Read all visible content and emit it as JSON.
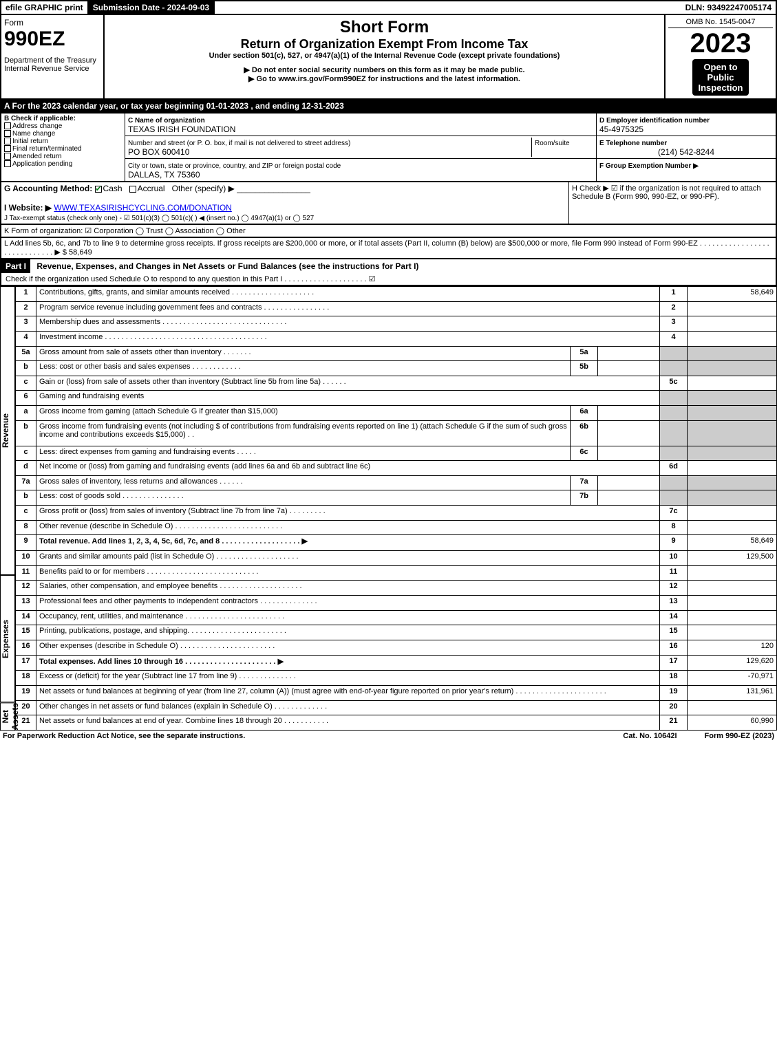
{
  "topbar": {
    "efile": "efile GRAPHIC print",
    "submission_label": "Submission Date - 2024-09-03",
    "dln": "DLN: 93492247005174"
  },
  "header": {
    "form_word": "Form",
    "form_no": "990EZ",
    "dept": "Department of the Treasury\nInternal Revenue Service",
    "short_form": "Short Form",
    "title": "Return of Organization Exempt From Income Tax",
    "under": "Under section 501(c), 527, or 4947(a)(1) of the Internal Revenue Code (except private foundations)",
    "warn": "▶ Do not enter social security numbers on this form as it may be made public.",
    "goto": "▶ Go to www.irs.gov/Form990EZ for instructions and the latest information.",
    "omb": "OMB No. 1545-0047",
    "year": "2023",
    "open": "Open to\nPublic\nInspection"
  },
  "rowA": "A  For the 2023 calendar year, or tax year beginning 01-01-2023 , and ending 12-31-2023",
  "checkB": {
    "title": "B  Check if applicable:",
    "items": [
      "Address change",
      "Name change",
      "Initial return",
      "Final return/terminated",
      "Amended return",
      "Application pending"
    ]
  },
  "nameBox": {
    "c_label": "C Name of organization",
    "name": "TEXAS IRISH FOUNDATION",
    "street_label": "Number and street (or P. O. box, if mail is not delivered to street address)",
    "room_label": "Room/suite",
    "street": "PO BOX 600410",
    "city_label": "City or town, state or province, country, and ZIP or foreign postal code",
    "city": "DALLAS, TX  75360"
  },
  "rightBox": {
    "d_label": "D Employer identification number",
    "ein": "45-4975325",
    "e_label": "E Telephone number",
    "phone": "(214) 542-8244",
    "f_label": "F Group Exemption Number  ▶"
  },
  "rowG": {
    "label": "G Accounting Method:",
    "cash": "Cash",
    "accrual": "Accrual",
    "other": "Other (specify) ▶"
  },
  "rowH": "H  Check ▶ ☑ if the organization is not required to attach Schedule B (Form 990, 990-EZ, or 990-PF).",
  "rowI": {
    "label": "I Website: ▶",
    "url": "WWW.TEXASIRISHCYCLING.COM/DONATION"
  },
  "rowJ": "J Tax-exempt status (check only one) - ☑ 501(c)(3)  ◯ 501(c)(  ) ◀ (insert no.)  ◯ 4947(a)(1) or  ◯ 527",
  "rowK": "K Form of organization:  ☑ Corporation  ◯ Trust  ◯ Association  ◯ Other",
  "rowL": {
    "text": "L Add lines 5b, 6c, and 7b to line 9 to determine gross receipts. If gross receipts are $200,000 or more, or if total assets (Part II, column (B) below) are $500,000 or more, file Form 990 instead of Form 990-EZ  .  .  .  .  .  .  .  .  .  .  .  .  .  .  .  .  .  .  .  .  .  .  .  .  .  .  .  .  .   ▶ $",
    "amount": "58,649"
  },
  "partI": {
    "bar": "Part I",
    "title": "Revenue, Expenses, and Changes in Net Assets or Fund Balances (see the instructions for Part I)",
    "sub": "Check if the organization used Schedule O to respond to any question in this Part I  .  .  .  .  .  .  .  .  .  .  .  .  .  .  .  .  .  .  .  .  ☑"
  },
  "sections": {
    "revenue": "Revenue",
    "expenses": "Expenses",
    "netassets": "Net Assets"
  },
  "lines": [
    {
      "n": "1",
      "d": "Contributions, gifts, grants, and similar amounts received  .  .  .  .  .  .  .  .  .  .  .  .  .  .  .  .  .  .  .  .",
      "r": "1",
      "a": "58,649"
    },
    {
      "n": "2",
      "d": "Program service revenue including government fees and contracts  .  .  .  .  .  .  .  .  .  .  .  .  .  .  .  .",
      "r": "2",
      "a": ""
    },
    {
      "n": "3",
      "d": "Membership dues and assessments  .  .  .  .  .  .  .  .  .  .  .  .  .  .  .  .  .  .  .  .  .  .  .  .  .  .  .  .  .  .",
      "r": "3",
      "a": ""
    },
    {
      "n": "4",
      "d": "Investment income  .  .  .  .  .  .  .  .  .  .  .  .  .  .  .  .  .  .  .  .  .  .  .  .  .  .  .  .  .  .  .  .  .  .  .  .  .  .  .",
      "r": "4",
      "a": ""
    },
    {
      "n": "5a",
      "d": "Gross amount from sale of assets other than inventory  .  .  .  .  .  .  .",
      "sub": "5a"
    },
    {
      "n": "b",
      "d": "Less: cost or other basis and sales expenses  .  .  .  .  .  .  .  .  .  .  .  .",
      "sub": "5b"
    },
    {
      "n": "c",
      "d": "Gain or (loss) from sale of assets other than inventory (Subtract line 5b from line 5a)  .  .  .  .  .  .",
      "r": "5c",
      "a": ""
    },
    {
      "n": "6",
      "d": "Gaming and fundraising events"
    },
    {
      "n": "a",
      "d": "Gross income from gaming (attach Schedule G if greater than $15,000)",
      "sub": "6a"
    },
    {
      "n": "b",
      "d": "Gross income from fundraising events (not including $                           of contributions from fundraising events reported on line 1) (attach Schedule G if the sum of such gross income and contributions exceeds $15,000)   .   .",
      "sub": "6b"
    },
    {
      "n": "c",
      "d": "Less: direct expenses from gaming and fundraising events   .  .  .  .  .",
      "sub": "6c"
    },
    {
      "n": "d",
      "d": "Net income or (loss) from gaming and fundraising events (add lines 6a and 6b and subtract line 6c)",
      "r": "6d",
      "a": ""
    },
    {
      "n": "7a",
      "d": "Gross sales of inventory, less returns and allowances  .  .  .  .  .  .",
      "sub": "7a"
    },
    {
      "n": "b",
      "d": "Less: cost of goods sold            .   .   .   .   .   .   .   .   .   .   .   .   .   .   .",
      "sub": "7b"
    },
    {
      "n": "c",
      "d": "Gross profit or (loss) from sales of inventory (Subtract line 7b from line 7a)  .  .  .  .  .  .  .  .  .",
      "r": "7c",
      "a": ""
    },
    {
      "n": "8",
      "d": "Other revenue (describe in Schedule O)  .  .  .  .  .  .  .  .  .  .  .  .  .  .  .  .  .  .  .  .  .  .  .  .  .  .",
      "r": "8",
      "a": ""
    },
    {
      "n": "9",
      "d": "Total revenue. Add lines 1, 2, 3, 4, 5c, 6d, 7c, and 8   .  .  .  .  .  .  .  .  .  .  .  .  .  .  .  .  .  .  .  ▶",
      "r": "9",
      "a": "58,649",
      "bold": true
    },
    {
      "n": "10",
      "d": "Grants and similar amounts paid (list in Schedule O)  .  .  .  .  .  .  .  .  .  .  .  .  .  .  .  .  .  .  .  .",
      "r": "10",
      "a": "129,500",
      "sec": "exp"
    },
    {
      "n": "11",
      "d": "Benefits paid to or for members       .  .  .  .  .  .  .  .  .  .  .  .  .  .  .  .  .  .  .  .  .  .  .  .  .  .  .",
      "r": "11",
      "a": "",
      "sec": "exp"
    },
    {
      "n": "12",
      "d": "Salaries, other compensation, and employee benefits  .  .  .  .  .  .  .  .  .  .  .  .  .  .  .  .  .  .  .  .",
      "r": "12",
      "a": "",
      "sec": "exp"
    },
    {
      "n": "13",
      "d": "Professional fees and other payments to independent contractors  .  .  .  .  .  .  .  .  .  .  .  .  .  .",
      "r": "13",
      "a": "",
      "sec": "exp"
    },
    {
      "n": "14",
      "d": "Occupancy, rent, utilities, and maintenance .  .  .  .  .  .  .  .  .  .  .  .  .  .  .  .  .  .  .  .  .  .  .  .",
      "r": "14",
      "a": "",
      "sec": "exp"
    },
    {
      "n": "15",
      "d": "Printing, publications, postage, and shipping.  .  .  .  .  .  .  .  .  .  .  .  .  .  .  .  .  .  .  .  .  .  .  .",
      "r": "15",
      "a": "",
      "sec": "exp"
    },
    {
      "n": "16",
      "d": "Other expenses (describe in Schedule O)      .  .  .  .  .  .  .  .  .  .  .  .  .  .  .  .  .  .  .  .  .  .  .",
      "r": "16",
      "a": "120",
      "sec": "exp"
    },
    {
      "n": "17",
      "d": "Total expenses. Add lines 10 through 16       .  .  .  .  .  .  .  .  .  .  .  .  .  .  .  .  .  .  .  .  .  .  ▶",
      "r": "17",
      "a": "129,620",
      "bold": true,
      "sec": "exp"
    },
    {
      "n": "18",
      "d": "Excess or (deficit) for the year (Subtract line 17 from line 9)       .  .  .  .  .  .  .  .  .  .  .  .  .  .",
      "r": "18",
      "a": "-70,971",
      "sec": "na"
    },
    {
      "n": "19",
      "d": "Net assets or fund balances at beginning of year (from line 27, column (A)) (must agree with end-of-year figure reported on prior year's return) .  .  .  .  .  .  .  .  .  .  .  .  .  .  .  .  .  .  .  .  .  .",
      "r": "19",
      "a": "131,961",
      "sec": "na"
    },
    {
      "n": "20",
      "d": "Other changes in net assets or fund balances (explain in Schedule O)  .  .  .  .  .  .  .  .  .  .  .  .  .",
      "r": "20",
      "a": "",
      "sec": "na"
    },
    {
      "n": "21",
      "d": "Net assets or fund balances at end of year. Combine lines 18 through 20  .  .  .  .  .  .  .  .  .  .  .",
      "r": "21",
      "a": "60,990",
      "sec": "na"
    }
  ],
  "footer": {
    "left": "For Paperwork Reduction Act Notice, see the separate instructions.",
    "mid": "Cat. No. 10642I",
    "right": "Form 990-EZ (2023)"
  }
}
